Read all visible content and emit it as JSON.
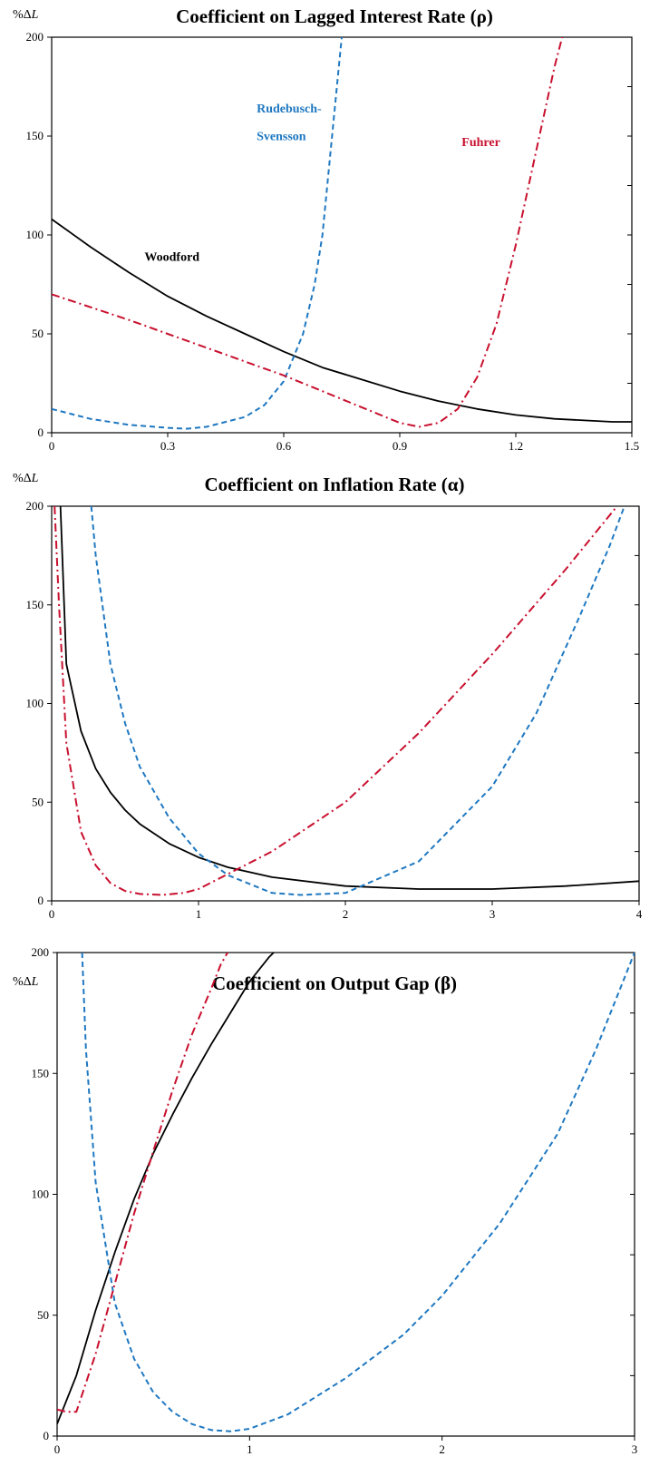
{
  "ylabel_prefix": "%Δ",
  "ylabel_var": "L",
  "colors": {
    "woodford": "#000000",
    "rudebusch_svensson": "#1f78c1",
    "fuhrer": "#c8102e"
  },
  "chart_data": [
    {
      "type": "line",
      "title": "Coefficient on Lagged Interest Rate (ρ)",
      "xlabel": "",
      "ylabel": "%ΔL",
      "xlim": [
        0,
        1.5
      ],
      "ylim": [
        0,
        200
      ],
      "xticks": [
        "0",
        "0.3",
        "0.6",
        "0.9",
        "1.2",
        "1.5"
      ],
      "yticks": [
        "0",
        "50",
        "100",
        "150",
        "200"
      ],
      "annotations": [
        {
          "text": "Woodford",
          "series": "Woodford"
        },
        {
          "text": "Rudebusch-",
          "series": "Rudebusch-Svensson"
        },
        {
          "text": "Svensson",
          "series": "Rudebusch-Svensson"
        },
        {
          "text": "Fuhrer",
          "series": "Fuhrer"
        }
      ],
      "series": [
        {
          "name": "Woodford",
          "style": "solid",
          "x": [
            0,
            0.05,
            0.1,
            0.2,
            0.3,
            0.4,
            0.5,
            0.6,
            0.7,
            0.8,
            0.9,
            1.0,
            1.1,
            1.2,
            1.3,
            1.4,
            1.45,
            1.5
          ],
          "y": [
            108,
            101,
            94,
            81,
            69,
            59,
            50,
            41,
            33,
            27,
            21,
            16,
            12,
            9,
            7,
            6,
            5.5,
            5.5
          ]
        },
        {
          "name": "Rudebusch-Svensson",
          "style": "dashed",
          "x": [
            0,
            0.1,
            0.2,
            0.3,
            0.35,
            0.4,
            0.5,
            0.55,
            0.6,
            0.65,
            0.68,
            0.7,
            0.72,
            0.74,
            0.75
          ],
          "y": [
            12,
            7,
            4,
            2.5,
            2,
            3,
            8,
            14,
            26,
            50,
            75,
            100,
            140,
            180,
            200
          ]
        },
        {
          "name": "Fuhrer",
          "style": "dashdot",
          "x": [
            0,
            0.2,
            0.4,
            0.6,
            0.7,
            0.8,
            0.9,
            0.95,
            1.0,
            1.05,
            1.1,
            1.15,
            1.2,
            1.25,
            1.3,
            1.32
          ],
          "y": [
            70,
            57,
            43,
            29,
            21,
            13,
            5,
            3,
            5,
            12,
            28,
            55,
            95,
            140,
            185,
            200
          ]
        }
      ]
    },
    {
      "type": "line",
      "title": "Coefficient on Inflation Rate (α)",
      "xlabel": "",
      "ylabel": "%ΔL",
      "xlim": [
        0,
        4
      ],
      "ylim": [
        0,
        200
      ],
      "xticks": [
        "0",
        "1",
        "2",
        "3",
        "4"
      ],
      "yticks": [
        "0",
        "50",
        "100",
        "150",
        "200"
      ],
      "series": [
        {
          "name": "Woodford",
          "style": "solid",
          "x": [
            0.06,
            0.1,
            0.2,
            0.3,
            0.4,
            0.5,
            0.6,
            0.8,
            1.0,
            1.2,
            1.5,
            2.0,
            2.5,
            3.0,
            3.5,
            4.0
          ],
          "y": [
            200,
            120,
            86,
            67,
            55,
            46,
            39,
            29,
            22,
            17,
            12,
            7.5,
            6,
            6,
            7.5,
            10
          ]
        },
        {
          "name": "Rudebusch-Svensson",
          "style": "dashed",
          "x": [
            0.27,
            0.3,
            0.4,
            0.5,
            0.6,
            0.8,
            1.0,
            1.2,
            1.5,
            1.7,
            2.0,
            2.5,
            3.0,
            3.3,
            3.6,
            3.8,
            3.9
          ],
          "y": [
            200,
            175,
            120,
            90,
            68,
            42,
            24,
            13,
            4,
            3,
            4,
            20,
            58,
            95,
            145,
            180,
            200
          ]
        },
        {
          "name": "Fuhrer",
          "style": "dashdot",
          "x": [
            0.02,
            0.05,
            0.1,
            0.2,
            0.3,
            0.4,
            0.5,
            0.6,
            0.75,
            0.9,
            1.0,
            1.5,
            2.0,
            2.5,
            3.0,
            3.5,
            3.85
          ],
          "y": [
            200,
            150,
            80,
            35,
            18,
            9,
            5,
            3.5,
            3,
            4,
            6,
            25,
            50,
            85,
            125,
            168,
            200
          ]
        }
      ]
    },
    {
      "type": "line",
      "title": "Coefficient on Output Gap (β)",
      "xlabel": "",
      "ylabel": "%ΔL",
      "xlim": [
        0,
        3
      ],
      "ylim": [
        0,
        200
      ],
      "xticks": [
        "0",
        "1",
        "2",
        "3"
      ],
      "yticks": [
        "0",
        "50",
        "100",
        "150",
        "200"
      ],
      "series": [
        {
          "name": "Woodford",
          "style": "solid",
          "x": [
            0,
            0.1,
            0.2,
            0.3,
            0.4,
            0.5,
            0.6,
            0.7,
            0.8,
            0.9,
            1.0,
            1.1,
            1.15
          ],
          "y": [
            5,
            25,
            52,
            76,
            98,
            117,
            133,
            148,
            162,
            175,
            188,
            198,
            202
          ]
        },
        {
          "name": "Rudebusch-Svensson",
          "style": "dashed",
          "x": [
            0.13,
            0.15,
            0.2,
            0.3,
            0.4,
            0.5,
            0.6,
            0.7,
            0.8,
            0.9,
            1.0,
            1.2,
            1.5,
            1.8,
            2.0,
            2.3,
            2.6,
            2.8,
            3.0
          ],
          "y": [
            200,
            160,
            105,
            55,
            32,
            18,
            10,
            5,
            2.5,
            2,
            3,
            9,
            24,
            42,
            58,
            88,
            125,
            160,
            200
          ]
        },
        {
          "name": "Fuhrer",
          "style": "dashdot",
          "x": [
            0,
            0.05,
            0.1,
            0.2,
            0.3,
            0.4,
            0.5,
            0.6,
            0.7,
            0.8,
            0.85,
            0.9
          ],
          "y": [
            11,
            10,
            10,
            34,
            63,
            92,
            118,
            143,
            166,
            185,
            195,
            202
          ]
        }
      ]
    }
  ]
}
